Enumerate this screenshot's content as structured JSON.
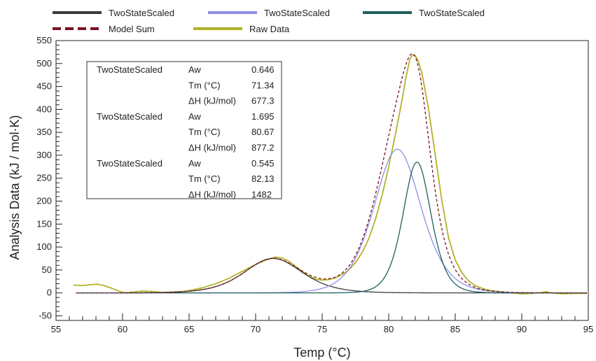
{
  "chart_data": {
    "type": "line",
    "xlabel": "Temp (°C)",
    "ylabel": "Analysis Data (kJ / mol·K)",
    "xlim": [
      55,
      95
    ],
    "ylim": [
      -60,
      550
    ],
    "xticks": [
      55,
      60,
      65,
      70,
      75,
      80,
      85,
      90,
      95
    ],
    "yticks": [
      -50,
      0,
      50,
      100,
      150,
      200,
      250,
      300,
      350,
      400,
      450,
      500,
      550
    ],
    "grid": false,
    "legend_position": "top",
    "series": [
      {
        "name": "TwoStateScaled",
        "color": "#3c3c3c",
        "style": "solid",
        "model": "twostate",
        "x_range": [
          56.5,
          94.9
        ],
        "params": {
          "Aw": 0.646,
          "Tm": 71.34,
          "dH": 677.3
        }
      },
      {
        "name": "TwoStateScaled",
        "color": "#8e8ee6",
        "style": "solid",
        "model": "twostate",
        "x_range": [
          56.5,
          94.9
        ],
        "params": {
          "Aw": 1.695,
          "Tm": 80.67,
          "dH": 877.2
        }
      },
      {
        "name": "TwoStateScaled",
        "color": "#1f5e5e",
        "style": "solid",
        "model": "twostate",
        "x_range": [
          56.5,
          94.9
        ],
        "params": {
          "Aw": 0.545,
          "Tm": 82.13,
          "dH": 1482
        }
      },
      {
        "name": "Model Sum",
        "color": "#7a1020",
        "style": "dashed",
        "model": "sum",
        "x_range": [
          56.5,
          94.9
        ]
      },
      {
        "name": "Raw Data",
        "color": "#b3b22a",
        "style": "solid",
        "points": [
          [
            56.3,
            17
          ],
          [
            57.0,
            16
          ],
          [
            57.6,
            18
          ],
          [
            58.1,
            19
          ],
          [
            58.6,
            16
          ],
          [
            59.2,
            10
          ],
          [
            59.7,
            4
          ],
          [
            60.2,
            0
          ],
          [
            60.8,
            2
          ],
          [
            61.5,
            4
          ],
          [
            62.2,
            3
          ],
          [
            63.0,
            1
          ],
          [
            63.8,
            2
          ],
          [
            64.5,
            3
          ],
          [
            65.0,
            5
          ],
          [
            66.0,
            11
          ],
          [
            67.0,
            20
          ],
          [
            68.0,
            32
          ],
          [
            69.0,
            47
          ],
          [
            70.0,
            62
          ],
          [
            70.8,
            72
          ],
          [
            71.5,
            78
          ],
          [
            72.0,
            76
          ],
          [
            72.5,
            69
          ],
          [
            73.0,
            58
          ],
          [
            73.5,
            47
          ],
          [
            74.0,
            37
          ],
          [
            74.5,
            30
          ],
          [
            75.0,
            28
          ],
          [
            75.5,
            29
          ],
          [
            76.0,
            33
          ],
          [
            76.5,
            40
          ],
          [
            77.0,
            50
          ],
          [
            77.5,
            66
          ],
          [
            78.0,
            88
          ],
          [
            78.5,
            118
          ],
          [
            79.0,
            160
          ],
          [
            79.5,
            212
          ],
          [
            80.0,
            275
          ],
          [
            80.5,
            345
          ],
          [
            81.0,
            420
          ],
          [
            81.3,
            470
          ],
          [
            81.6,
            510
          ],
          [
            81.8,
            519
          ],
          [
            82.0,
            517
          ],
          [
            82.2,
            507
          ],
          [
            82.5,
            478
          ],
          [
            83.0,
            400
          ],
          [
            83.5,
            300
          ],
          [
            84.0,
            200
          ],
          [
            84.5,
            120
          ],
          [
            85.0,
            72
          ],
          [
            85.5,
            44
          ],
          [
            86.0,
            26
          ],
          [
            86.5,
            16
          ],
          [
            87.0,
            10
          ],
          [
            87.5,
            6
          ],
          [
            88.0,
            4
          ],
          [
            89.0,
            1
          ],
          [
            90.0,
            -2
          ],
          [
            90.8,
            -1
          ],
          [
            91.5,
            1
          ],
          [
            91.8,
            3
          ],
          [
            92.2,
            0
          ],
          [
            93.0,
            -2
          ],
          [
            94.0,
            -1
          ],
          [
            94.9,
            -1
          ]
        ]
      }
    ],
    "param_box": [
      {
        "model": "TwoStateScaled",
        "rows": [
          [
            "Aw",
            "0.646"
          ],
          [
            "Tm (°C)",
            "71.34"
          ],
          [
            "ΔH (kJ/mol)",
            "677.3"
          ]
        ]
      },
      {
        "model": "TwoStateScaled",
        "rows": [
          [
            "Aw",
            "1.695"
          ],
          [
            "Tm (°C)",
            "80.67"
          ],
          [
            "ΔH (kJ/mol)",
            "877.2"
          ]
        ]
      },
      {
        "model": "TwoStateScaled",
        "rows": [
          [
            "Aw",
            "0.545"
          ],
          [
            "Tm (°C)",
            "82.13"
          ],
          [
            "ΔH (kJ/mol)",
            "1482"
          ]
        ]
      }
    ]
  }
}
